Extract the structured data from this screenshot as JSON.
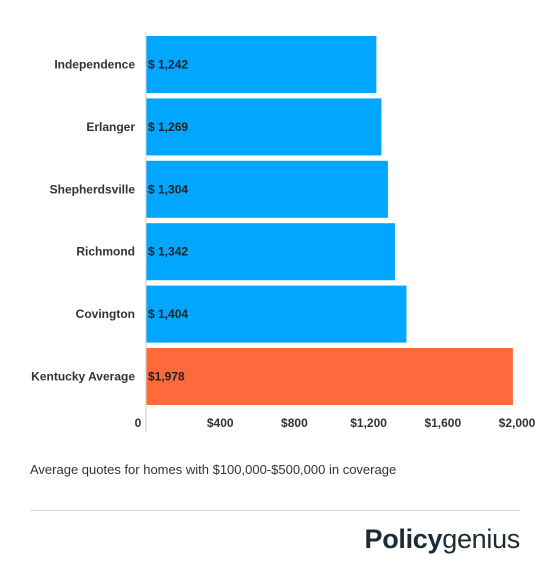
{
  "chart_data": {
    "type": "bar",
    "orientation": "horizontal",
    "categories": [
      "Independence",
      "Erlanger",
      "Shepherdsville",
      "Richmond",
      "Covington",
      "Kentucky Average"
    ],
    "values": [
      1242,
      1269,
      1304,
      1342,
      1404,
      1978
    ],
    "value_labels": [
      "$ 1,242",
      "$ 1,269",
      "$ 1,304",
      "$ 1,342",
      "$ 1,404",
      "$1,978"
    ],
    "x_ticks": [
      {
        "value": 0,
        "label": "0"
      },
      {
        "value": 400,
        "label": "$400"
      },
      {
        "value": 800,
        "label": "$800"
      },
      {
        "value": 1200,
        "label": "$1,200"
      },
      {
        "value": 1600,
        "label": "$1,600"
      },
      {
        "value": 2000,
        "label": "$2,000"
      }
    ],
    "xlim": [
      0,
      2000
    ],
    "grid": false,
    "colors": {
      "default": "#00a6ff",
      "highlight": "#ff6a3d",
      "label": "#222222",
      "axis": "#cccccc"
    },
    "highlight_category": "Kentucky Average"
  },
  "caption": "Average quotes for homes with $100,000-$500,000 in coverage",
  "brand": {
    "bold": "Policy",
    "light": "genius"
  }
}
